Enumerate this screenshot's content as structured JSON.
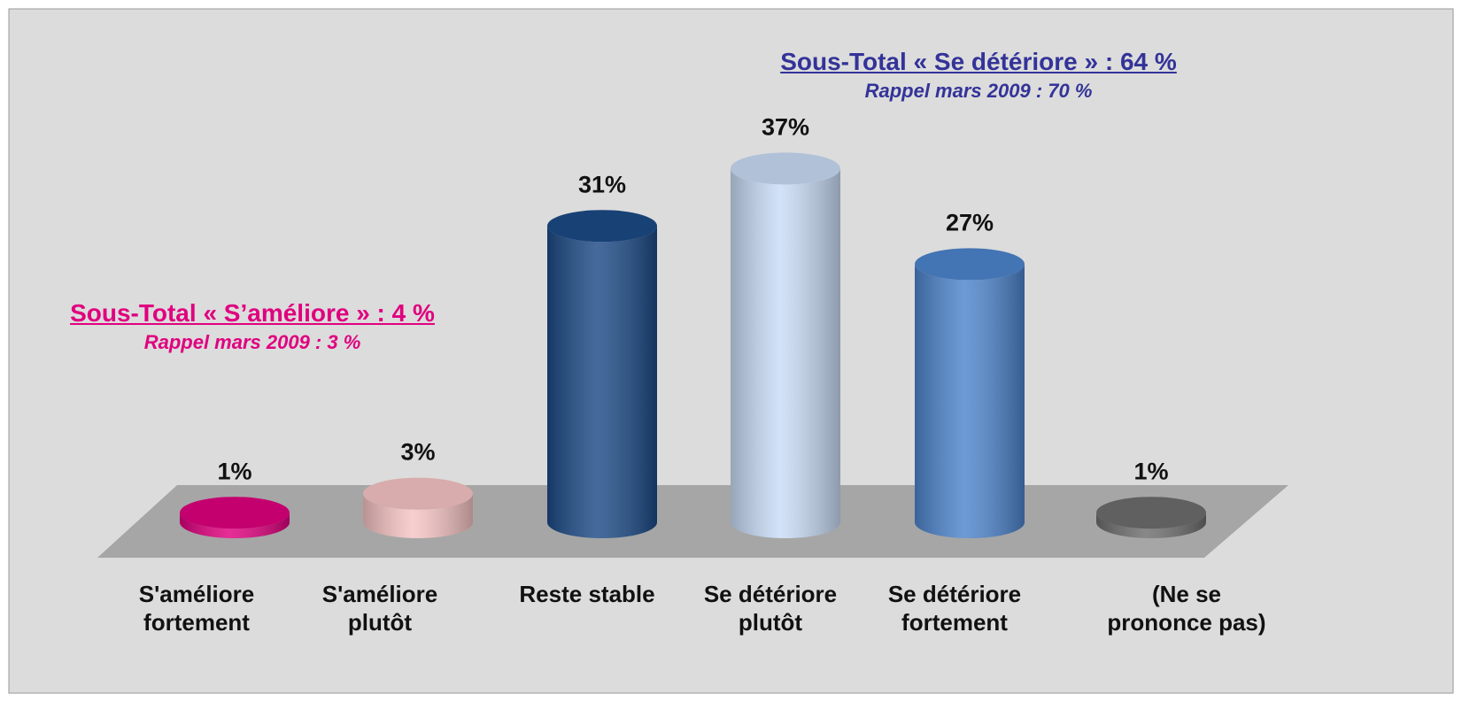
{
  "chart_data": {
    "type": "cylinder",
    "categories": [
      "S'améliore fortement",
      "S'améliore plutôt",
      "Reste stable",
      "Se détériore plutôt",
      "Se détériore fortement",
      "(Ne se prononce pas)"
    ],
    "values": [
      1,
      3,
      31,
      37,
      27,
      1
    ],
    "value_labels": [
      "1%",
      "3%",
      "31%",
      "37%",
      "27%",
      "1%"
    ],
    "colors": [
      "#e0007f",
      "#f6c4c4",
      "#1c4a86",
      "#c9dcf6",
      "#4d84cc",
      "#6e6e6e"
    ],
    "annotations": [
      {
        "title": "Sous-Total « S’améliore » : 4 %",
        "subtitle": "Rappel mars 2009 : 3 %",
        "color": "#e0007f"
      },
      {
        "title": "Sous-Total « Se détériore » : 64 %",
        "subtitle": "Rappel mars 2009 : 70 %",
        "color": "#333399"
      }
    ]
  }
}
